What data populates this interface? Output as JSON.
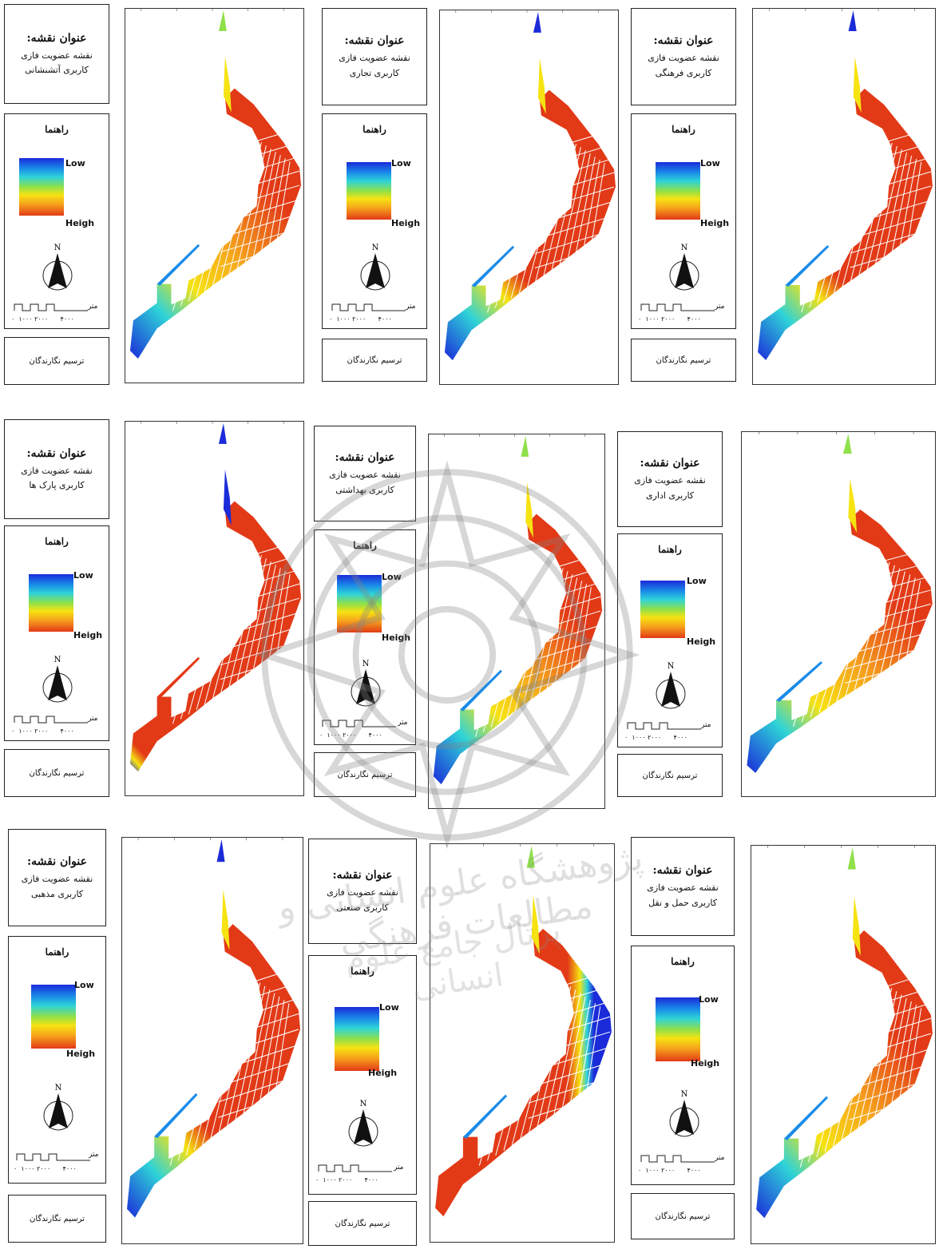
{
  "common": {
    "title_heading": "عنوان نقشه:",
    "title_line": "نقشه عضویت فازی",
    "legend_heading": "راهنما",
    "legend_low": "Low",
    "legend_high": "Heigh",
    "north_label": "N",
    "scale_unit": "متر",
    "scale_labels": "۰  ۱۰۰۰ ۲۰۰۰      ۴۰۰۰",
    "author": "ترسیم نگارندگان"
  },
  "maps": [
    {
      "landuse": "کاربری آتشنشانی",
      "pattern": "gradient-low-west"
    },
    {
      "landuse": "کاربری تجاری",
      "pattern": "mostly-high"
    },
    {
      "landuse": "کاربری فرهنگی",
      "pattern": "mostly-high"
    },
    {
      "landuse": "کاربری پارک ها",
      "pattern": "all-high"
    },
    {
      "landuse": "کاربری بهداشتی",
      "pattern": "gradient-low-west"
    },
    {
      "landuse": "کاربری اداری",
      "pattern": "gradient-low-west"
    },
    {
      "landuse": "کاربری مذهبی",
      "pattern": "mostly-high"
    },
    {
      "landuse": "کاربری صنعتی",
      "pattern": "high-with-east-low"
    },
    {
      "landuse": "کاربری حمل و نقل",
      "pattern": "gradient-low-west"
    }
  ],
  "colors": {
    "low": "#1b2bd9",
    "mid": "#f6e312",
    "high": "#e23a17"
  },
  "watermark": {
    "line1": "پژوهشگاه علوم انسانی و مطالعات فرهنگی",
    "line2": "پرتال جامع علوم انسانی"
  }
}
